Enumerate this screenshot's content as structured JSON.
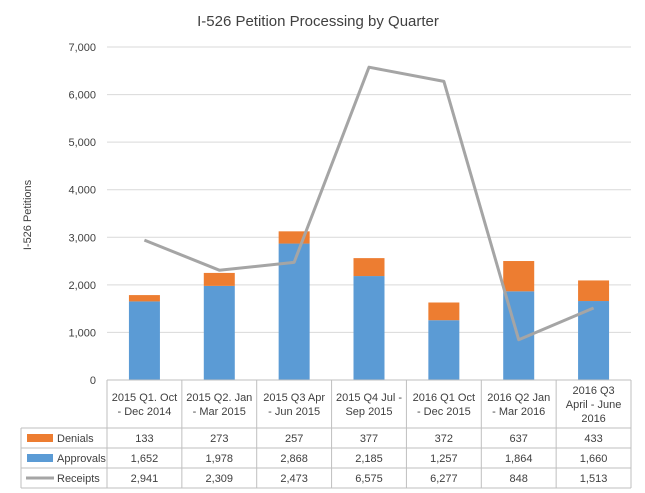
{
  "chart_data": {
    "type": "bar",
    "title": "I-526 Petition Processing by Quarter",
    "ylabel": "I-526 Petitions",
    "xlabel": "",
    "ylim": [
      0,
      7000
    ],
    "yticks": [
      "0",
      "1,000",
      "2,000",
      "3,000",
      "4,000",
      "5,000",
      "6,000",
      "7,000"
    ],
    "ytick_values": [
      0,
      1000,
      2000,
      3000,
      4000,
      5000,
      6000,
      7000
    ],
    "grid": true,
    "legend": "data-table-left",
    "categories": [
      [
        "2015 Q1. Oct",
        "- Dec 2014"
      ],
      [
        "2015 Q2. Jan",
        "- Mar 2015"
      ],
      [
        "2015 Q3 Apr",
        "- Jun 2015"
      ],
      [
        "2015 Q4 Jul -",
        "Sep 2015"
      ],
      [
        "2016 Q1 Oct",
        "- Dec 2015"
      ],
      [
        "2016 Q2 Jan",
        "- Mar 2016"
      ],
      [
        "2016 Q3",
        "April - June",
        "2016"
      ]
    ],
    "series": [
      {
        "name": "Denials",
        "kind": "stacked-bar",
        "color": "#ED7D31",
        "values": [
          133,
          273,
          257,
          377,
          372,
          637,
          433
        ],
        "labels": [
          "133",
          "273",
          "257",
          "377",
          "372",
          "637",
          "433"
        ]
      },
      {
        "name": "Approvals",
        "kind": "stacked-bar",
        "color": "#5B9BD5",
        "values": [
          1652,
          1978,
          2868,
          2185,
          1257,
          1864,
          1660
        ],
        "labels": [
          "1,652",
          "1,978",
          "2,868",
          "2,185",
          "1,257",
          "1,864",
          "1,660"
        ]
      },
      {
        "name": "Receipts",
        "kind": "line",
        "color": "#A5A5A5",
        "values": [
          2941,
          2309,
          2473,
          6575,
          6277,
          848,
          1513
        ],
        "labels": [
          "2,941",
          "2,309",
          "2,473",
          "6,575",
          "6,277",
          "848",
          "1,513"
        ]
      }
    ]
  }
}
